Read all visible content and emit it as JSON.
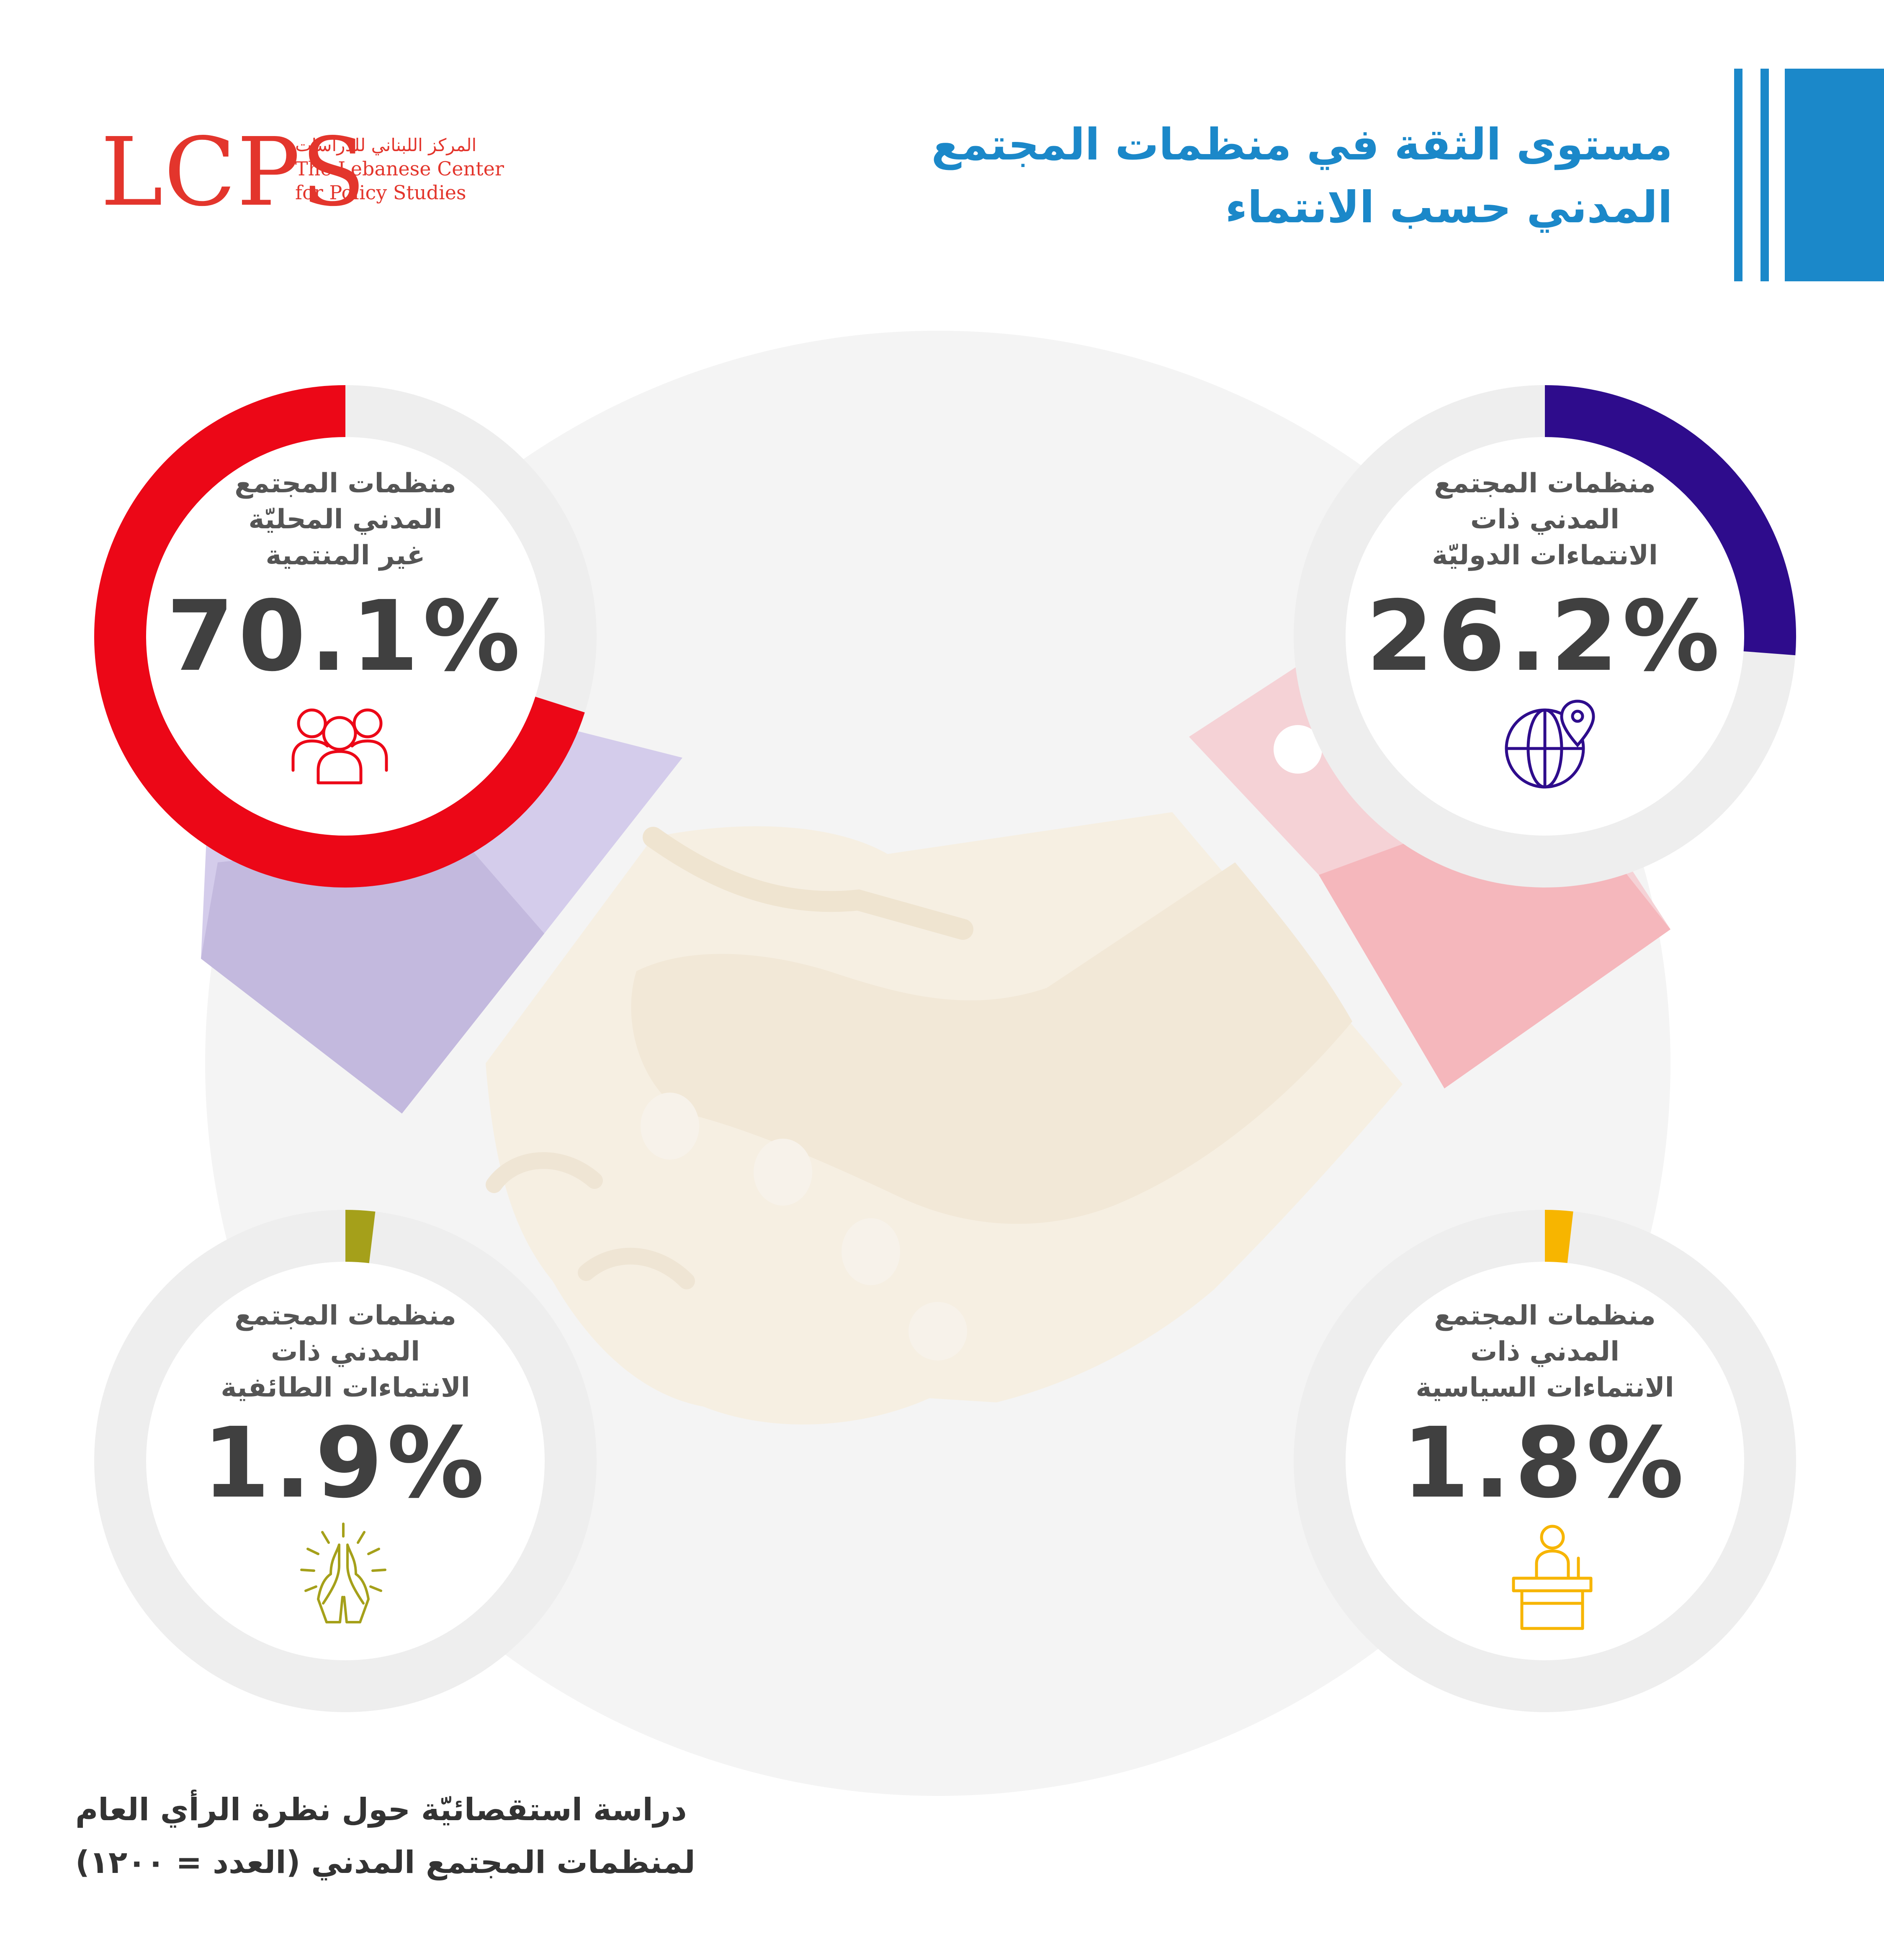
{
  "logo": {
    "mark": "LCPS",
    "name_ar": "المركز اللبناني للدراسات",
    "name_en_line1": "The Lebanese Center",
    "name_en_line2": "for Policy Studies"
  },
  "title": {
    "line1": "مستوى الثقة في منظمات المجتمع",
    "line2": "المدني حسب الانتماء"
  },
  "footer": {
    "line1": "دراسة استقصائيّة حول نظرة الرأي العام",
    "line2": "لمنظمات المجتمع المدني (العدد = ١٢٠٠)"
  },
  "colors": {
    "title_blue": "#1b88c9",
    "local_red": "#ec0717",
    "international_indigo": "#2e0c8c",
    "sectarian_olive": "#a5a01a",
    "political_yellow": "#f7b500",
    "track_gray": "#eeeeee"
  },
  "chart_data": {
    "type": "donut",
    "title": "مستوى الثقة في منظمات المجتمع المدني حسب الانتماء",
    "unit": "%",
    "series": [
      {
        "id": "local",
        "label_lines": [
          "منظمات المجتمع",
          "المدني المحليّة",
          "غير المنتمية"
        ],
        "value": 70.1,
        "value_text": "70.1%",
        "color": "#ec0717",
        "icon": "people-group-icon"
      },
      {
        "id": "international",
        "label_lines": [
          "منظمات المجتمع",
          "المدني ذات",
          "الانتماءات الدوليّة"
        ],
        "value": 26.2,
        "value_text": "26.2%",
        "color": "#2e0c8c",
        "icon": "globe-pin-icon"
      },
      {
        "id": "sectarian",
        "label_lines": [
          "منظمات المجتمع",
          "المدني ذات",
          "الانتماءات الطائفية"
        ],
        "value": 1.9,
        "value_text": "1.9%",
        "color": "#a5a01a",
        "icon": "praying-hands-icon"
      },
      {
        "id": "political",
        "label_lines": [
          "منظمات المجتمع",
          "المدني ذات",
          "الانتماءات السياسية"
        ],
        "value": 1.8,
        "value_text": "1.8%",
        "color": "#f7b500",
        "icon": "podium-speaker-icon"
      }
    ]
  }
}
